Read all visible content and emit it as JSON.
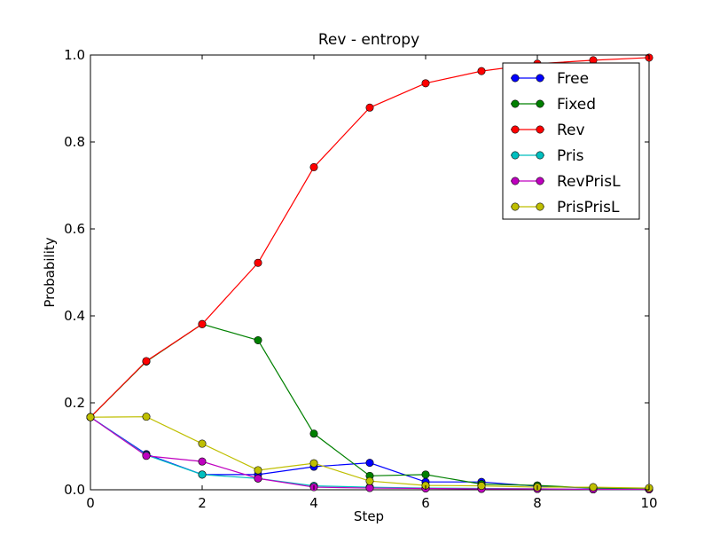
{
  "chart_data": {
    "type": "line",
    "title": "Rev - entropy",
    "xlabel": "Step",
    "ylabel": "Probability",
    "xlim": [
      0,
      10
    ],
    "ylim": [
      0,
      1.0
    ],
    "xticks": [
      "0",
      "2",
      "4",
      "6",
      "8",
      "10"
    ],
    "yticks": [
      "0.0",
      "0.2",
      "0.4",
      "0.6",
      "0.8",
      "1.0"
    ],
    "grid": false,
    "legend": {
      "placement": "top-right"
    },
    "x": [
      0,
      1,
      2,
      3,
      4,
      5,
      6,
      7,
      8,
      9,
      10
    ],
    "series": [
      {
        "name": "Free",
        "color": "#0000ff",
        "values": [
          0.167,
          0.082,
          0.035,
          0.035,
          0.053,
          0.062,
          0.018,
          0.018,
          0.008,
          0.004,
          0.002
        ]
      },
      {
        "name": "Fixed",
        "color": "#008000",
        "values": [
          0.167,
          0.295,
          0.381,
          0.344,
          0.129,
          0.032,
          0.035,
          0.013,
          0.01,
          0.004,
          0.002
        ]
      },
      {
        "name": "Rev",
        "color": "#ff0000",
        "values": [
          0.167,
          0.296,
          0.381,
          0.522,
          0.742,
          0.879,
          0.935,
          0.963,
          0.98,
          0.988,
          0.994
        ]
      },
      {
        "name": "Pris",
        "color": "#00bfbf",
        "values": [
          0.167,
          0.08,
          0.035,
          0.026,
          0.009,
          0.006,
          0.004,
          0.003,
          0.002,
          0.001,
          0.001
        ]
      },
      {
        "name": "RevPrisL",
        "color": "#bf00bf",
        "values": [
          0.167,
          0.078,
          0.065,
          0.026,
          0.006,
          0.004,
          0.003,
          0.002,
          0.002,
          0.001,
          0.001
        ]
      },
      {
        "name": "PrisPrisL",
        "color": "#bfbf00",
        "values": [
          0.167,
          0.168,
          0.106,
          0.045,
          0.061,
          0.02,
          0.01,
          0.009,
          0.006,
          0.006,
          0.004
        ]
      }
    ]
  }
}
